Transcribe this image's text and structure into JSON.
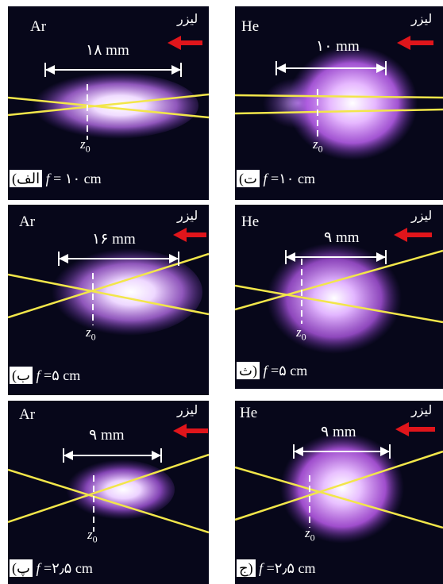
{
  "panels": [
    {
      "id": "alef",
      "gas": "Ar",
      "laser_label": "لیزر",
      "width_label": "۱۸ mm",
      "z0": "z",
      "z0_sub": "0",
      "caption_paren": "(الف",
      "caption_rest": "= ۱۰ cm",
      "f": "f"
    },
    {
      "id": "te",
      "gas": "He",
      "laser_label": "لیزر",
      "width_label": "۱۰ mm",
      "z0": "z",
      "z0_sub": "0",
      "caption_paren": "(ت",
      "caption_rest": "=۱۰ cm",
      "f": "f"
    },
    {
      "id": "be",
      "gas": "Ar",
      "laser_label": "لیزر",
      "width_label": "۱۶ mm",
      "z0": "z",
      "z0_sub": "0",
      "caption_paren": "(ب",
      "caption_rest": "=۵ cm",
      "f": "f"
    },
    {
      "id": "se",
      "gas": "He",
      "laser_label": "لیزر",
      "width_label": "۹ mm",
      "z0": "z",
      "z0_sub": "0",
      "caption_paren": "ث)",
      "caption_rest": "=۵ cm",
      "f": "f"
    },
    {
      "id": "pe",
      "gas": "Ar",
      "laser_label": "لیزر",
      "width_label": "۹ mm",
      "z0": "z",
      "z0_sub": "0",
      "caption_paren": "(پ",
      "caption_rest": "=۲٫۵ cm",
      "f": "f"
    },
    {
      "id": "jim",
      "gas": "He",
      "laser_label": "لیزر",
      "width_label": "۹ mm",
      "z0": "z",
      "z0_sub": "0",
      "caption_paren": "ج)",
      "caption_rest": "=۲٫۵ cm",
      "f": "f"
    }
  ],
  "colors": {
    "beam": "#f2e64a",
    "arrow": "#e0151b",
    "background": "#07071a",
    "plasma_core": "#ffffff",
    "plasma_edge": "#9a40d8"
  }
}
